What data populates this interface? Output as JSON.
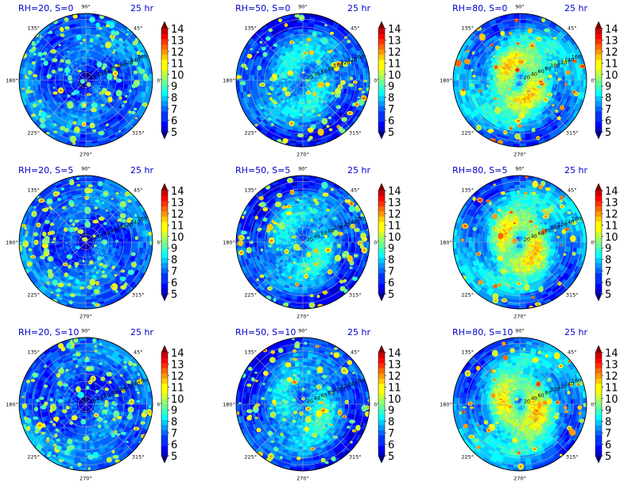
{
  "chart_data": {
    "type": "polar-contourf",
    "rows": 3,
    "cols": 3,
    "panels": [
      {
        "title": "RH=20, S=0",
        "time": "25 hr",
        "rh": 20,
        "s": 0
      },
      {
        "title": "RH=50, S=0",
        "time": "25 hr",
        "rh": 50,
        "s": 0
      },
      {
        "title": "RH=80, S=0",
        "time": "25 hr",
        "rh": 80,
        "s": 0
      },
      {
        "title": "RH=20, S=5",
        "time": "25 hr",
        "rh": 20,
        "s": 5
      },
      {
        "title": "RH=50, S=5",
        "time": "25 hr",
        "rh": 50,
        "s": 5
      },
      {
        "title": "RH=80, S=5",
        "time": "25 hr",
        "rh": 80,
        "s": 5
      },
      {
        "title": "RH=20, S=10",
        "time": "25 hr",
        "rh": 20,
        "s": 10
      },
      {
        "title": "RH=50, S=10",
        "time": "25 hr",
        "rh": 50,
        "s": 10
      },
      {
        "title": "RH=80, S=10",
        "time": "25 hr",
        "rh": 80,
        "s": 10
      }
    ],
    "angle_labels": [
      "0°",
      "45°",
      "90°",
      "135°",
      "180°",
      "225°",
      "270°",
      "315°"
    ],
    "angle_values": [
      0,
      45,
      90,
      135,
      180,
      225,
      270,
      315
    ],
    "radial_ticks": [
      20,
      40,
      60,
      80,
      100,
      120,
      140,
      160
    ],
    "radial_tick_labels": [
      "20",
      "40",
      "60",
      "80",
      "100",
      "120",
      "140",
      "160"
    ],
    "rlim": [
      0,
      175
    ],
    "radial_label_angle_deg": 22.5,
    "colorbar": {
      "levels": [
        5,
        6,
        7,
        8,
        9,
        10,
        11,
        12,
        13,
        14
      ],
      "tick_labels": [
        "5",
        "6",
        "7",
        "8",
        "9",
        "10",
        "11",
        "12",
        "13",
        "14"
      ],
      "vmin": 4.5,
      "vmax": 14.5,
      "extend": "both",
      "colormap": "jet"
    },
    "grid": true
  }
}
